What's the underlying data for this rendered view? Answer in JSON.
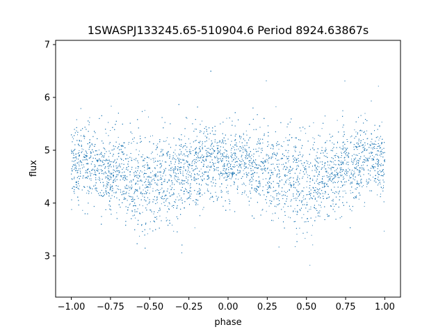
{
  "chart_data": {
    "type": "scatter",
    "title": "1SWASPJ133245.65-510904.6 Period 8924.63867s",
    "xlabel": "phase",
    "ylabel": "flux",
    "xlim": [
      -1.1,
      1.1
    ],
    "ylim": [
      2.22,
      7.08
    ],
    "x_ticks": [
      -1.0,
      -0.75,
      -0.5,
      -0.25,
      0.0,
      0.25,
      0.5,
      0.75,
      1.0
    ],
    "x_tick_labels": [
      "−1.00",
      "−0.75",
      "−0.50",
      "−0.25",
      "0.00",
      "0.25",
      "0.50",
      "0.75",
      "1.00"
    ],
    "y_ticks": [
      3,
      4,
      5,
      6,
      7
    ],
    "y_tick_labels": [
      "3",
      "4",
      "5",
      "6",
      "7"
    ],
    "grid": false,
    "marker_color": "#1f77b4",
    "series": [
      {
        "x": [
          -1.0,
          -0.9,
          -0.8,
          -0.7,
          -0.6,
          -0.5,
          -0.4,
          -0.3,
          -0.2,
          -0.1,
          0.0,
          0.1,
          0.2,
          0.3,
          0.4,
          0.5,
          0.6,
          0.7,
          0.8,
          0.9,
          1.0
        ],
        "y_median": [
          4.75,
          4.72,
          4.68,
          4.58,
          4.48,
          4.38,
          4.45,
          4.6,
          4.72,
          4.78,
          4.75,
          4.72,
          4.68,
          4.58,
          4.48,
          4.38,
          4.45,
          4.6,
          4.72,
          4.78,
          4.75
        ],
        "y_spread": [
          0.35,
          0.36,
          0.37,
          0.4,
          0.43,
          0.46,
          0.43,
          0.4,
          0.37,
          0.35,
          0.35,
          0.36,
          0.37,
          0.4,
          0.43,
          0.46,
          0.43,
          0.4,
          0.37,
          0.35,
          0.35
        ],
        "y_min": 2.45,
        "y_max": 6.85
      }
    ]
  }
}
